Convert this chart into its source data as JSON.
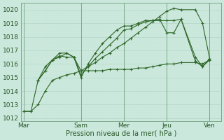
{
  "xlabel": "Pression niveau de la mer( hPa )",
  "bg_color": "#cbe8dc",
  "grid_major_color": "#b8d8cb",
  "grid_minor_color": "#cde4d9",
  "line_color": "#2d6627",
  "ylim": [
    1011.8,
    1020.5
  ],
  "xlim": [
    -0.2,
    13.8
  ],
  "xtick_labels": [
    "Mar",
    "Sam",
    "Mer",
    "Jeu",
    "Ven"
  ],
  "xtick_positions": [
    0,
    4,
    7,
    10,
    13
  ],
  "ytick_positions": [
    1012,
    1013,
    1014,
    1015,
    1016,
    1017,
    1018,
    1019,
    1020
  ],
  "vline_positions": [
    0,
    4,
    7,
    10,
    13
  ],
  "lines": [
    {
      "x": [
        0,
        0.5,
        1.0,
        1.5,
        2.0,
        2.5,
        3.0,
        3.5,
        4.0,
        4.5,
        5.0,
        5.5,
        6.0,
        6.5,
        7.0,
        7.5,
        8.0,
        8.5,
        9.0,
        9.5,
        10.0,
        10.5,
        11.0,
        12.0,
        12.5,
        13.0
      ],
      "y": [
        1012.5,
        1012.5,
        1013.0,
        1014.0,
        1014.8,
        1015.0,
        1015.2,
        1015.3,
        1015.5,
        1015.8,
        1016.1,
        1016.5,
        1016.8,
        1017.2,
        1017.5,
        1017.9,
        1018.3,
        1018.7,
        1019.1,
        1019.5,
        1019.9,
        1020.1,
        1020.0,
        1020.0,
        1019.0,
        1016.4
      ]
    },
    {
      "x": [
        1.0,
        1.5,
        2.0,
        2.5,
        3.0,
        3.5,
        4.0,
        4.5,
        5.0,
        5.5,
        6.0,
        6.5,
        7.0,
        7.5,
        8.0,
        8.5,
        9.0,
        9.5,
        10.0,
        10.5,
        11.0,
        12.0,
        12.5,
        13.0
      ],
      "y": [
        1014.8,
        1015.8,
        1016.3,
        1016.6,
        1016.5,
        1016.5,
        1015.2,
        1015.8,
        1016.4,
        1016.9,
        1017.4,
        1017.9,
        1018.5,
        1018.6,
        1018.9,
        1019.1,
        1019.2,
        1019.2,
        1019.2,
        1019.2,
        1019.3,
        1016.5,
        1015.8,
        1016.3
      ]
    },
    {
      "x": [
        1.0,
        1.5,
        2.0,
        2.5,
        3.0,
        3.5,
        4.0,
        4.5,
        5.0,
        5.5,
        6.0,
        6.5,
        7.0,
        7.5,
        8.0,
        8.5,
        9.0,
        9.5,
        10.0,
        10.5,
        11.0,
        12.0,
        12.5,
        13.0
      ],
      "y": [
        1014.8,
        1015.5,
        1016.3,
        1016.8,
        1016.8,
        1016.5,
        1015.0,
        1016.0,
        1016.8,
        1017.5,
        1018.0,
        1018.5,
        1018.8,
        1018.8,
        1019.0,
        1019.2,
        1019.2,
        1019.3,
        1018.3,
        1018.3,
        1019.3,
        1016.2,
        1015.8,
        1016.4
      ]
    },
    {
      "x": [
        0,
        0.5,
        1.0,
        1.5,
        2.0,
        2.5,
        3.0,
        3.5,
        4.0,
        4.5,
        5.0,
        5.5,
        6.0,
        6.5,
        7.0,
        7.5,
        8.0,
        8.5,
        9.0,
        9.5,
        10.0,
        10.5,
        11.0,
        12.0,
        12.5,
        13.0
      ],
      "y": [
        1012.5,
        1012.5,
        1014.8,
        1015.5,
        1016.3,
        1016.5,
        1016.8,
        1016.5,
        1015.5,
        1015.5,
        1015.5,
        1015.5,
        1015.6,
        1015.6,
        1015.6,
        1015.6,
        1015.7,
        1015.7,
        1015.8,
        1015.9,
        1016.0,
        1016.0,
        1016.1,
        1016.1,
        1016.0,
        1016.3
      ]
    }
  ]
}
